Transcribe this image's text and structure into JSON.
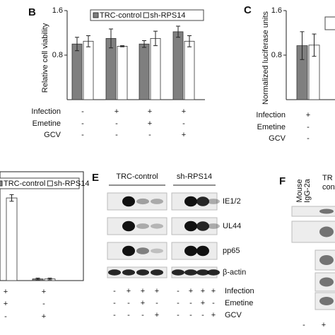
{
  "figure": {
    "panels": [
      {
        "label": "B",
        "type": "bar",
        "ylabel": "Relative cell viability",
        "ylim": [
          0,
          1.6
        ],
        "yticks": [
          0.8,
          1.6
        ],
        "series": [
          {
            "name": "TRC-control",
            "color": "#7f7f7f",
            "values": [
              1.0,
              1.1,
              1.0,
              1.22
            ],
            "errors": [
              0.12,
              0.17,
              0.06,
              0.1
            ]
          },
          {
            "name": "sh-RPS14",
            "color": "#ffffff",
            "values": [
              1.05,
              0.96,
              1.1,
              1.05
            ],
            "errors": [
              0.1,
              0.01,
              0.13,
              0.1
            ]
          }
        ],
        "conditions": [
          {
            "name": "Infection",
            "values": [
              "-",
              "+",
              "+",
              "+"
            ]
          },
          {
            "name": "Emetine",
            "values": [
              "-",
              "-",
              "+",
              "-"
            ]
          },
          {
            "name": "GCV",
            "values": [
              "-",
              "-",
              "-",
              "+"
            ]
          }
        ]
      },
      {
        "label": "C",
        "type": "bar",
        "ylabel": "Normalized luciferase units",
        "ylim": [
          0,
          1.6
        ],
        "yticks": [
          0.8,
          1.6
        ],
        "series": [
          {
            "color": "#7f7f7f",
            "values": [
              0.97
            ],
            "errors": [
              0.25
            ]
          },
          {
            "color": "#ffffff",
            "values": [
              0.98
            ],
            "errors": [
              0.2
            ]
          }
        ],
        "conditions": [
          {
            "name": "Infection",
            "values": [
              "+"
            ]
          },
          {
            "name": "Emetine",
            "values": [
              "-"
            ]
          },
          {
            "name": "GCV",
            "values": [
              "-"
            ]
          }
        ]
      },
      {
        "type": "bar",
        "ylim": [
          0,
          1.3
        ],
        "series": [
          {
            "name": "TRC-control",
            "color": "#7f7f7f",
            "values": [
              null,
              0.02
            ],
            "errors": [
              null,
              0.01
            ]
          },
          {
            "name": "sh-RPS14",
            "color": "#ffffff",
            "values": [
              1.0,
              0.02
            ],
            "errors": [
              0.04,
              0.01
            ]
          }
        ],
        "conditions": [
          {
            "values": [
              "+",
              "+"
            ]
          },
          {
            "values": [
              "+",
              "-"
            ]
          },
          {
            "values": [
              "-",
              "+"
            ]
          }
        ]
      },
      {
        "label": "E",
        "type": "blot",
        "groups": [
          "TRC-control",
          "sh-RPS14"
        ],
        "proteins": [
          "IE1/2",
          "UL44",
          "pp65",
          "β-actin"
        ],
        "conditions": [
          {
            "name": "Infection",
            "values": [
              "-",
              "+",
              "+",
              "+",
              "-",
              "+",
              "+",
              "+"
            ]
          },
          {
            "name": "Emetine",
            "values": [
              "-",
              "-",
              "+",
              "-",
              "-",
              "-",
              "+",
              "-"
            ]
          },
          {
            "name": "GCV",
            "values": [
              "-",
              "-",
              "-",
              "+",
              "-",
              "-",
              "-",
              "+"
            ]
          }
        ]
      },
      {
        "label": "F",
        "type": "blot-partial",
        "lanes": [
          [
            "Mouse",
            "IgG-2a"
          ],
          [
            "TR",
            "contr"
          ]
        ],
        "conditions": [
          "-",
          "+"
        ]
      }
    ]
  }
}
